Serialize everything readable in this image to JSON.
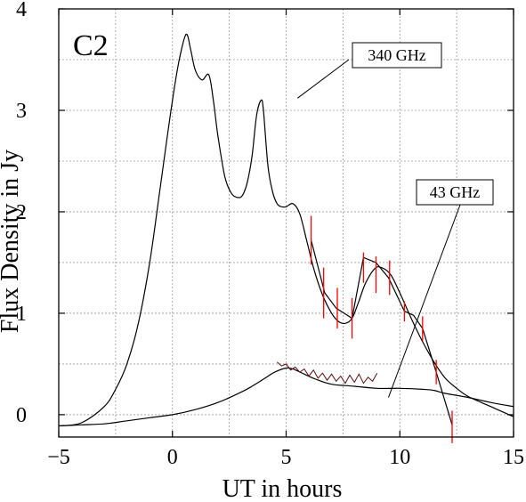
{
  "chart_data": {
    "type": "line",
    "panel_label": "C2",
    "xlabel": "UT in hours",
    "ylabel": "Flux Density in Jy",
    "xlim": [
      -5,
      15
    ],
    "ylim": [
      -0.22,
      4.0
    ],
    "x_ticks": [
      -5,
      0,
      5,
      10,
      15
    ],
    "y_ticks": [
      0,
      1,
      2,
      3,
      4
    ],
    "grid": true,
    "colors": {
      "axis": "#000000",
      "curve": "#000000",
      "error_bar": "#ff0000",
      "noisy_data": "#5a0f0f"
    },
    "annotations": [
      {
        "text": "340 GHz",
        "points_to_x": 5.5,
        "points_to_y": 3.12
      },
      {
        "text": "43 GHz",
        "points_to_x": 9.5,
        "points_to_y": 0.17
      }
    ],
    "series": [
      {
        "x": [
          -5,
          -4,
          -3,
          -2.5,
          -2,
          -1.5,
          -1,
          -0.5,
          0,
          0.3,
          0.6,
          0.8,
          1.0,
          1.3,
          1.6,
          1.8,
          2.0,
          2.3,
          2.6,
          2.9,
          3.1,
          3.3,
          3.5,
          3.7,
          3.9,
          4.0,
          4.2,
          4.4,
          4.6,
          4.8,
          5.0,
          5.3,
          5.6,
          5.9,
          6.2,
          6.6,
          7.0,
          7.3,
          7.6,
          7.9,
          8.2,
          8.5,
          8.9,
          9.2,
          9.6,
          10.0,
          10.5,
          11.0,
          11.5,
          12.0,
          12.5,
          13.0,
          14.0,
          15.0
        ],
        "y": [
          -0.11,
          -0.08,
          0.08,
          0.25,
          0.5,
          0.9,
          1.5,
          2.3,
          3.1,
          3.5,
          3.75,
          3.6,
          3.4,
          3.3,
          3.35,
          3.1,
          2.75,
          2.35,
          2.18,
          2.14,
          2.17,
          2.3,
          2.55,
          2.95,
          3.1,
          3.0,
          2.45,
          2.2,
          2.08,
          2.05,
          2.05,
          2.08,
          1.98,
          1.72,
          1.45,
          1.18,
          1.0,
          0.92,
          0.9,
          0.95,
          1.12,
          1.3,
          1.44,
          1.45,
          1.38,
          1.2,
          0.95,
          0.72,
          0.52,
          0.36,
          0.26,
          0.18,
          0.08,
          -0.02
        ]
      },
      {
        "x": [
          -5,
          -4,
          -3,
          -2,
          -1,
          0,
          1,
          2,
          3,
          3.5,
          4,
          4.5,
          5,
          5.3,
          5.8,
          6.3,
          7,
          8,
          9,
          10,
          11,
          11.5,
          12,
          13,
          14,
          15
        ],
        "y": [
          -0.11,
          -0.1,
          -0.09,
          -0.06,
          -0.03,
          0.0,
          0.05,
          0.12,
          0.22,
          0.28,
          0.35,
          0.42,
          0.46,
          0.45,
          0.4,
          0.35,
          0.3,
          0.28,
          0.26,
          0.26,
          0.25,
          0.24,
          0.21,
          0.17,
          0.12,
          0.08
        ]
      },
      {
        "x": [
          6.1,
          6.7,
          7.2,
          7.9,
          8.4,
          8.95,
          9.5,
          10.2,
          10.6,
          11.0,
          11.6,
          12.3
        ],
        "y": [
          1.72,
          1.2,
          1.05,
          0.95,
          1.55,
          1.5,
          1.35,
          1.02,
          0.98,
          0.85,
          0.42,
          -0.1
        ]
      },
      {
        "x": [
          4.6,
          4.8,
          5.0,
          5.2,
          5.4,
          5.6,
          5.8,
          6.0,
          6.2,
          6.4,
          6.6,
          6.8,
          7.0,
          7.2,
          7.4,
          7.6,
          7.8,
          8.0,
          8.2,
          8.4,
          8.6,
          8.8,
          9.0
        ],
        "y": [
          0.52,
          0.48,
          0.5,
          0.44,
          0.47,
          0.42,
          0.45,
          0.38,
          0.44,
          0.36,
          0.41,
          0.34,
          0.4,
          0.33,
          0.38,
          0.31,
          0.39,
          0.32,
          0.4,
          0.31,
          0.37,
          0.33,
          0.41
        ]
      }
    ],
    "error_bars": [
      {
        "x": 6.1,
        "y": 1.72,
        "lo": 1.48,
        "hi": 1.96
      },
      {
        "x": 6.65,
        "y": 1.2,
        "lo": 0.95,
        "hi": 1.45
      },
      {
        "x": 7.25,
        "y": 1.05,
        "lo": 0.85,
        "hi": 1.25
      },
      {
        "x": 7.9,
        "y": 0.95,
        "lo": 0.75,
        "hi": 1.15
      },
      {
        "x": 8.4,
        "y": 1.45,
        "lo": 1.3,
        "hi": 1.6
      },
      {
        "x": 8.95,
        "y": 1.38,
        "lo": 1.2,
        "hi": 1.56
      },
      {
        "x": 9.55,
        "y": 1.35,
        "lo": 1.18,
        "hi": 1.52
      },
      {
        "x": 10.2,
        "y": 1.02,
        "lo": 0.92,
        "hi": 1.12
      },
      {
        "x": 11.0,
        "y": 0.85,
        "lo": 0.73,
        "hi": 0.97
      },
      {
        "x": 11.6,
        "y": 0.42,
        "lo": 0.3,
        "hi": 0.54
      },
      {
        "x": 12.3,
        "y": -0.12,
        "lo": -0.28,
        "hi": 0.04
      }
    ]
  }
}
